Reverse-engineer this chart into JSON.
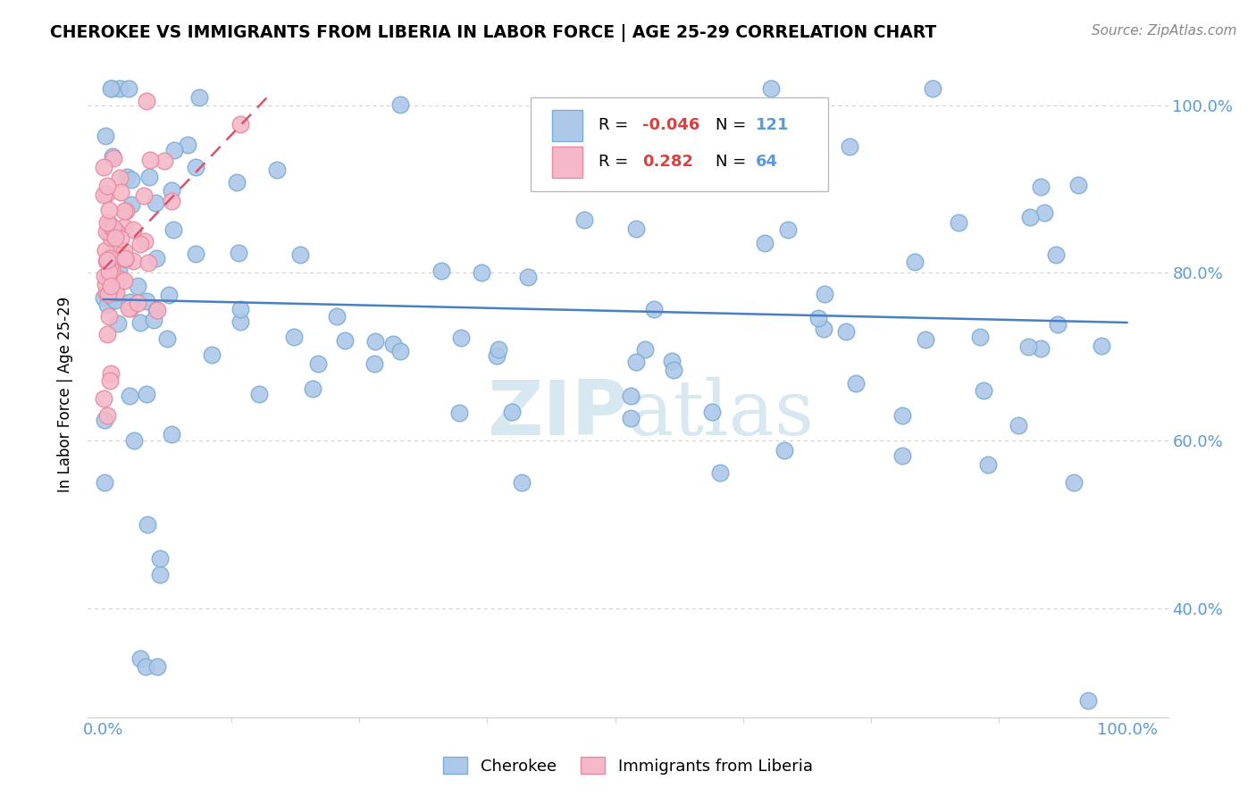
{
  "title": "CHEROKEE VS IMMIGRANTS FROM LIBERIA IN LABOR FORCE | AGE 25-29 CORRELATION CHART",
  "source": "Source: ZipAtlas.com",
  "ylabel": "In Labor Force | Age 25-29",
  "r_blue": -0.046,
  "n_blue": 121,
  "r_pink": 0.282,
  "n_pink": 64,
  "blue_color": "#adc8e8",
  "blue_edge": "#7aadd4",
  "pink_color": "#f5b8c8",
  "pink_edge": "#e88aa0",
  "trend_blue": "#4a7fc1",
  "trend_pink": "#d9536a",
  "watermark_color": "#d8e8f0",
  "tick_color": "#5b9bd5",
  "grid_color": "#cccccc",
  "ylim_low": 0.27,
  "ylim_high": 1.04,
  "xlim_low": -0.015,
  "xlim_high": 1.04
}
